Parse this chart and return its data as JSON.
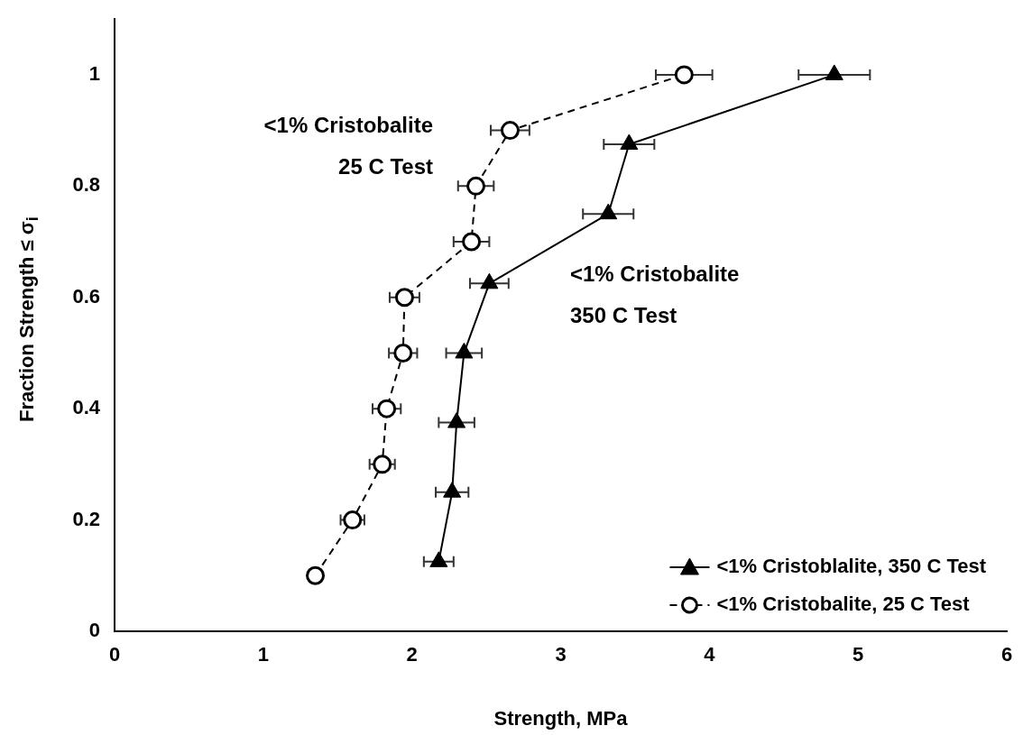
{
  "chart_data": {
    "type": "line",
    "xlabel": "Strength, MPa",
    "ylabel": "Fraction Strength ≤ σ$_{i}$",
    "xlim": [
      0,
      6
    ],
    "xticks": [
      0,
      1,
      2,
      3,
      4,
      5,
      6
    ],
    "ylim": [
      0,
      1.1
    ],
    "yticks": [
      0,
      0.2,
      0.4,
      0.6,
      0.8,
      1
    ],
    "grid": false,
    "legend": "bottom right",
    "series": [
      {
        "name": "<1% Cristoblalite, 350 C Test",
        "color": "#000000",
        "marker": "triangle",
        "line_style": "solid",
        "x": [
          2.18,
          2.27,
          2.3,
          2.35,
          2.52,
          3.32,
          3.46,
          4.84
        ],
        "values": [
          0.125,
          0.25,
          0.375,
          0.5,
          0.625,
          0.75,
          0.875,
          1
        ],
        "xerrors": [
          0.1,
          0.11,
          0.12,
          0.12,
          0.13,
          0.17,
          0.17,
          0.24
        ]
      },
      {
        "name": "<1% Cristobalite, 25 C Test",
        "color": "#000000",
        "marker": "circle",
        "line_style": "dashed",
        "x": [
          1.35,
          1.6,
          1.8,
          1.83,
          1.94,
          1.95,
          2.4,
          2.43,
          2.66,
          3.83
        ],
        "values": [
          0.1,
          0.2,
          0.3,
          0.4,
          0.5,
          0.6,
          0.7,
          0.8,
          0.9,
          1
        ],
        "xerrors": [
          null,
          0.08,
          0.085,
          0.095,
          0.095,
          0.1,
          0.12,
          0.12,
          0.13,
          0.19
        ]
      }
    ],
    "annotations": [
      "<1% Cristobalite\n25 C Test",
      "<1% Cristobalite\n350 C Test"
    ]
  }
}
